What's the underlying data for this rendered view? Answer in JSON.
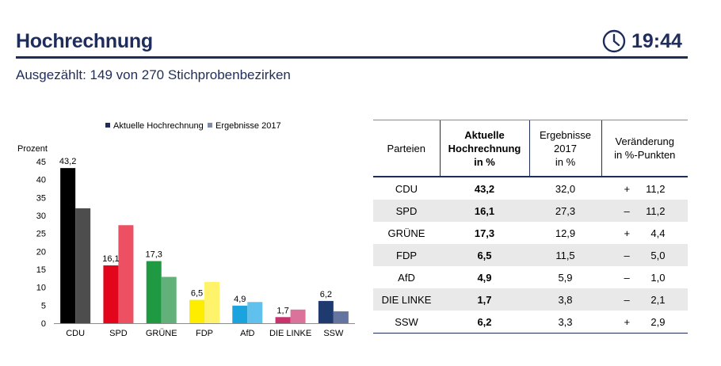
{
  "header": {
    "title": "Hochrechnung",
    "time": "19:44",
    "clock_icon": "clock-icon"
  },
  "subtitle": "Ausgezählt: 149 von 270 Stichprobenbezirken",
  "chart_data": {
    "type": "bar",
    "ylabel": "Prozent",
    "ylim": [
      0,
      45
    ],
    "yticks": [
      0,
      5,
      10,
      15,
      20,
      25,
      30,
      35,
      40,
      45
    ],
    "legend_position": "top",
    "categories": [
      "CDU",
      "SPD",
      "GRÜNE",
      "FDP",
      "AfD",
      "DIE LINKE",
      "SSW"
    ],
    "series": [
      {
        "name": "Aktuelle Hochrechnung",
        "values": [
          43.2,
          16.1,
          17.3,
          6.5,
          4.9,
          1.7,
          6.2
        ],
        "labels": [
          "43,2",
          "16,1",
          "17,3",
          "6,5",
          "4,9",
          "1,7",
          "6,2"
        ]
      },
      {
        "name": "Ergebnisse 2017",
        "values": [
          32.0,
          27.3,
          12.9,
          11.5,
          5.9,
          3.8,
          3.3
        ]
      }
    ],
    "colors_current": [
      "#000000",
      "#e3051b",
      "#1f9a43",
      "#ffed00",
      "#1aa3dd",
      "#c8336e",
      "#1f3a6e"
    ],
    "colors_previous": [
      "#4d4d4d",
      "#ec5062",
      "#62b07a",
      "#fff36b",
      "#5fc1ec",
      "#db729b",
      "#6475a0"
    ],
    "legend_colors": [
      "#1f2d5c",
      "#7f8aa6"
    ]
  },
  "table": {
    "headers": [
      "Parteien",
      "Aktuelle\nHochrechnung\nin %",
      "Ergebnisse\n2017\nin %",
      "Veränderung\nin %-Punkten"
    ],
    "rows": [
      {
        "party": "CDU",
        "current": "43,2",
        "previous": "32,0",
        "sign": "+",
        "change": "11,2"
      },
      {
        "party": "SPD",
        "current": "16,1",
        "previous": "27,3",
        "sign": "–",
        "change": "11,2"
      },
      {
        "party": "GRÜNE",
        "current": "17,3",
        "previous": "12,9",
        "sign": "+",
        "change": "4,4"
      },
      {
        "party": "FDP",
        "current": "6,5",
        "previous": "11,5",
        "sign": "–",
        "change": "5,0"
      },
      {
        "party": "AfD",
        "current": "4,9",
        "previous": "5,9",
        "sign": "–",
        "change": "1,0"
      },
      {
        "party": "DIE LINKE",
        "current": "1,7",
        "previous": "3,8",
        "sign": "–",
        "change": "2,1"
      },
      {
        "party": "SSW",
        "current": "6,2",
        "previous": "3,3",
        "sign": "+",
        "change": "2,9"
      }
    ]
  }
}
